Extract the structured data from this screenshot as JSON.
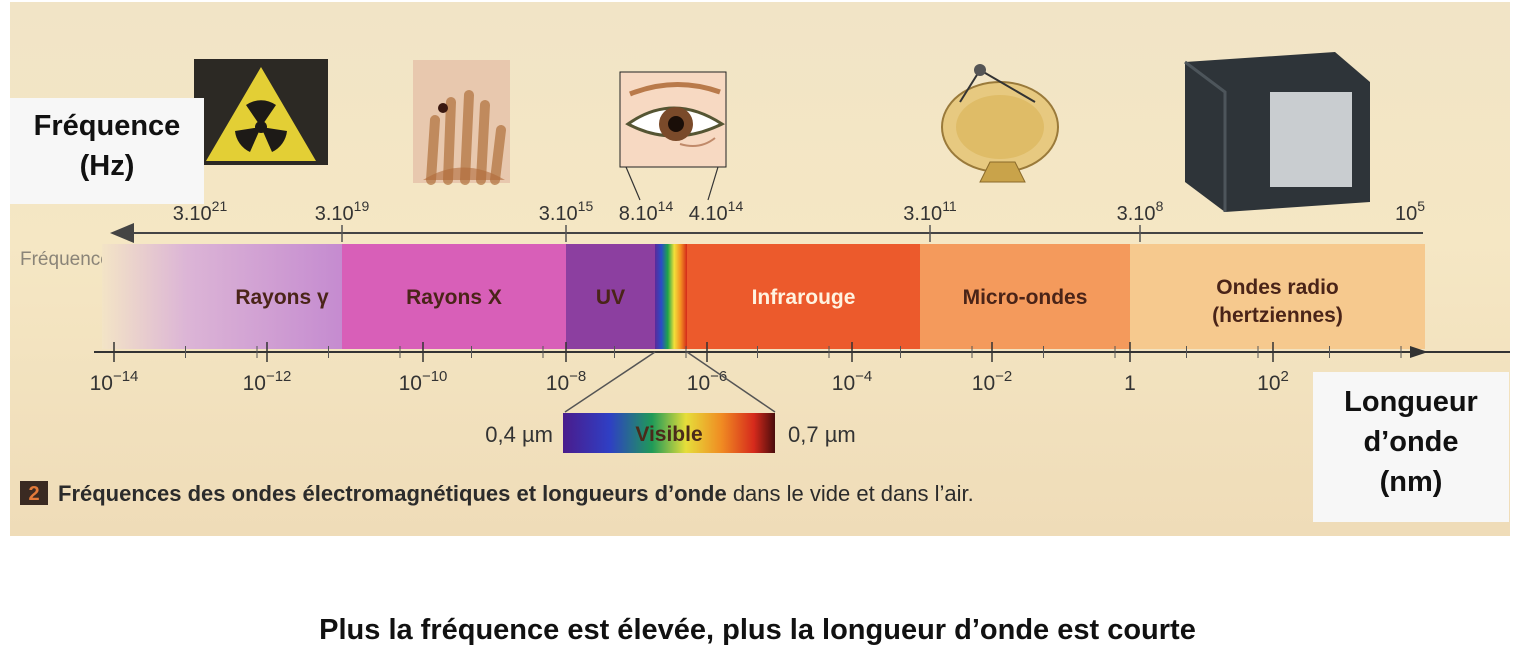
{
  "overlays": {
    "frequency_label": [
      "Fréquence",
      "(Hz)"
    ],
    "wavelength_label": [
      "Longueur",
      "d’onde",
      "(nm)"
    ],
    "statement": "Plus la fréquence est élevée, plus la longueur d’onde est courte"
  },
  "diagram": {
    "top_axis_label": "Fréquence (Hz)",
    "frequency_ticks": [
      {
        "base": "3.10",
        "exp": "21"
      },
      {
        "base": "3.10",
        "exp": "19"
      },
      {
        "base": "3.10",
        "exp": "15"
      },
      {
        "base": "8.10",
        "exp": "14"
      },
      {
        "base": "4.10",
        "exp": "14"
      },
      {
        "base": "3.10",
        "exp": "11"
      },
      {
        "base": "3.10",
        "exp": "8"
      },
      {
        "base": "10",
        "exp": "5"
      }
    ],
    "bands": [
      {
        "label": [
          "Rayons γ"
        ],
        "color": "#c88fd3"
      },
      {
        "label": [
          "Rayons X"
        ],
        "color": "#d85fb8"
      },
      {
        "label": [
          "UV"
        ],
        "color": "#8c3fa0"
      },
      {
        "label": [
          "Infrarouge"
        ],
        "color": "#ec5a2c"
      },
      {
        "label": [
          "Micro-ondes"
        ],
        "color": "#f49a5c"
      },
      {
        "label": [
          "Ondes radio",
          "(hertziennes)"
        ],
        "color": "#f6c98e"
      }
    ],
    "wavelength_ticks": [
      {
        "base": "10",
        "exp": "−14"
      },
      {
        "base": "10",
        "exp": "−12"
      },
      {
        "base": "10",
        "exp": "−10"
      },
      {
        "base": "10",
        "exp": "−8"
      },
      {
        "base": "10",
        "exp": "−6"
      },
      {
        "base": "10",
        "exp": "−4"
      },
      {
        "base": "10",
        "exp": "−2"
      },
      {
        "base": "1",
        "exp": ""
      },
      {
        "base": "10",
        "exp": "2"
      }
    ],
    "visible": {
      "label": "Visible",
      "left": "0,4 µm",
      "right": "0,7 µm"
    },
    "caption": {
      "number": "2",
      "bold": "Fréquences des ondes électromagnétiques et longueurs d’onde",
      "normal": " dans le vide et dans l’air."
    },
    "icons": [
      "radiation-icon",
      "xray-hand-icon",
      "eye-icon",
      "satellite-dish-icon",
      "television-icon"
    ]
  }
}
